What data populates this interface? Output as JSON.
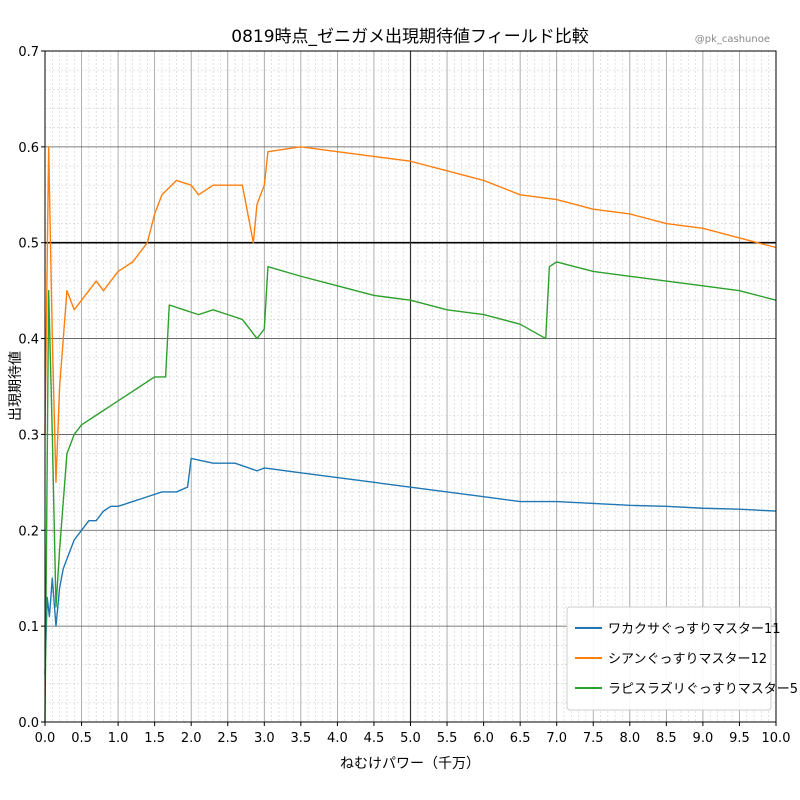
{
  "chart_data": {
    "type": "line",
    "title": "0819時点_ゼニガメ出現期待値フィールド比較",
    "watermark": "@pk_cashunoe",
    "xlabel": "ねむけパワー（千万）",
    "ylabel": "出現期待値",
    "xlim": [
      0,
      10
    ],
    "ylim": [
      0,
      0.7
    ],
    "xticks": [
      "0.0",
      "0.5",
      "1.0",
      "1.5",
      "2.0",
      "2.5",
      "3.0",
      "3.5",
      "4.0",
      "4.5",
      "5.0",
      "5.5",
      "6.0",
      "6.5",
      "7.0",
      "7.5",
      "8.0",
      "8.5",
      "9.0",
      "9.5",
      "10.0"
    ],
    "yticks": [
      "0.0",
      "0.1",
      "0.2",
      "0.3",
      "0.4",
      "0.5",
      "0.6",
      "0.7"
    ],
    "grid": true,
    "legend_position": "lower-right",
    "reference_lines": [
      {
        "axis": "y",
        "value": 0.5
      },
      {
        "axis": "x",
        "value": 5.0
      }
    ],
    "series": [
      {
        "name": "ワカクサぐっすりマスター11",
        "color": "#1f77b4",
        "x": [
          0.0,
          0.03,
          0.06,
          0.1,
          0.15,
          0.2,
          0.25,
          0.3,
          0.4,
          0.5,
          0.6,
          0.7,
          0.8,
          0.9,
          1.0,
          1.2,
          1.4,
          1.6,
          1.8,
          1.95,
          2.0,
          2.3,
          2.6,
          2.9,
          3.0,
          3.5,
          4.0,
          4.5,
          5.0,
          5.5,
          6.0,
          6.5,
          7.0,
          7.5,
          8.0,
          8.5,
          9.0,
          9.5,
          10.0
        ],
        "y": [
          0.05,
          0.13,
          0.11,
          0.15,
          0.1,
          0.14,
          0.16,
          0.17,
          0.19,
          0.2,
          0.21,
          0.21,
          0.22,
          0.225,
          0.225,
          0.23,
          0.235,
          0.24,
          0.24,
          0.245,
          0.275,
          0.27,
          0.27,
          0.262,
          0.265,
          0.26,
          0.255,
          0.25,
          0.245,
          0.24,
          0.235,
          0.23,
          0.23,
          0.228,
          0.226,
          0.225,
          0.223,
          0.222,
          0.22
        ]
      },
      {
        "name": "シアンぐっすりマスター12",
        "color": "#ff7f0e",
        "x": [
          0.0,
          0.05,
          0.1,
          0.15,
          0.2,
          0.3,
          0.4,
          0.5,
          0.6,
          0.7,
          0.8,
          0.9,
          1.0,
          1.2,
          1.4,
          1.5,
          1.6,
          1.8,
          2.0,
          2.1,
          2.3,
          2.5,
          2.7,
          2.85,
          2.9,
          3.0,
          3.05,
          3.5,
          4.0,
          4.5,
          5.0,
          5.5,
          6.0,
          6.5,
          7.0,
          7.5,
          8.0,
          8.5,
          9.0,
          9.5,
          10.0
        ],
        "y": [
          0.3,
          0.6,
          0.4,
          0.25,
          0.35,
          0.45,
          0.43,
          0.44,
          0.45,
          0.46,
          0.45,
          0.46,
          0.47,
          0.48,
          0.5,
          0.53,
          0.55,
          0.565,
          0.56,
          0.55,
          0.56,
          0.56,
          0.56,
          0.5,
          0.54,
          0.56,
          0.595,
          0.6,
          0.595,
          0.59,
          0.585,
          0.575,
          0.565,
          0.55,
          0.545,
          0.535,
          0.53,
          0.52,
          0.515,
          0.505,
          0.495
        ]
      },
      {
        "name": "ラピスラズリぐっすりマスター5",
        "color": "#2ca02c",
        "x": [
          0.0,
          0.05,
          0.1,
          0.15,
          0.2,
          0.3,
          0.4,
          0.5,
          0.7,
          0.9,
          1.1,
          1.3,
          1.5,
          1.65,
          1.7,
          1.9,
          2.1,
          2.3,
          2.5,
          2.7,
          2.9,
          3.0,
          3.05,
          3.5,
          4.0,
          4.5,
          5.0,
          5.5,
          6.0,
          6.5,
          6.85,
          6.9,
          7.0,
          7.5,
          8.0,
          8.5,
          9.0,
          9.5,
          10.0
        ],
        "y": [
          0.0,
          0.45,
          0.3,
          0.12,
          0.18,
          0.28,
          0.3,
          0.31,
          0.32,
          0.33,
          0.34,
          0.35,
          0.36,
          0.36,
          0.435,
          0.43,
          0.425,
          0.43,
          0.425,
          0.42,
          0.4,
          0.41,
          0.475,
          0.465,
          0.455,
          0.445,
          0.44,
          0.43,
          0.425,
          0.415,
          0.4,
          0.475,
          0.48,
          0.47,
          0.465,
          0.46,
          0.455,
          0.45,
          0.44
        ]
      }
    ]
  }
}
